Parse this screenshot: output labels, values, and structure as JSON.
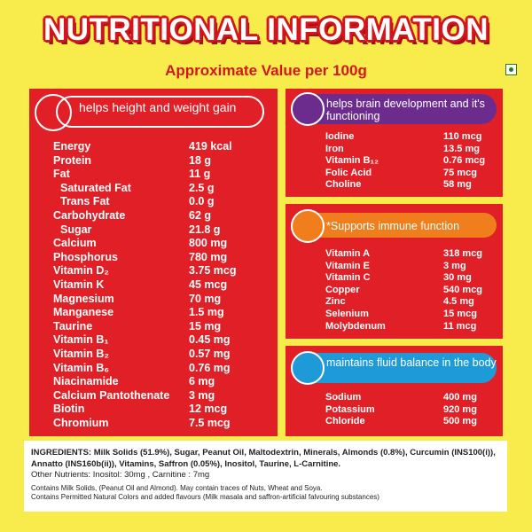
{
  "header": {
    "title": "NUTRITIONAL INFORMATION",
    "subtitle": "Approximate Value per 100g"
  },
  "panels": [
    {
      "header": "helps height and weight gain",
      "rows": [
        {
          "name": "Energy",
          "value": "419 kcal"
        },
        {
          "name": "Protein",
          "value": "18 g"
        },
        {
          "name": "Fat",
          "value": "11 g"
        },
        {
          "name": "Saturated Fat",
          "value": "2.5 g",
          "indented": true
        },
        {
          "name": "Trans Fat",
          "value": "0.0 g",
          "indented": true
        },
        {
          "name": "Carbohydrate",
          "value": "62 g"
        },
        {
          "name": "Sugar",
          "value": "21.8 g",
          "indented": true
        },
        {
          "name": "Calcium",
          "value": "800 mg"
        },
        {
          "name": "Phosphorus",
          "value": "780 mg"
        },
        {
          "name": "Vitamin D₂",
          "value": "3.75 mcg"
        },
        {
          "name": "Vitamin K",
          "value": "45 mcg"
        },
        {
          "name": "Magnesium",
          "value": "70 mg"
        },
        {
          "name": "Manganese",
          "value": "1.5 mg"
        },
        {
          "name": "Taurine",
          "value": "15 mg"
        },
        {
          "name": "Vitamin B₁",
          "value": "0.45 mg"
        },
        {
          "name": "Vitamin B₂",
          "value": "0.57 mg"
        },
        {
          "name": "Vitamin B₆",
          "value": "0.76 mg"
        },
        {
          "name": "Niacinamide",
          "value": "6 mg"
        },
        {
          "name": "Calcium Pantothenate",
          "value": "3 mg"
        },
        {
          "name": "Biotin",
          "value": "12 mcg"
        },
        {
          "name": "Chromium",
          "value": "7.5 mcg"
        }
      ]
    },
    {
      "header": "helps brain development and it's functioning",
      "rows": [
        {
          "name": "Iodine",
          "value": "110 mcg"
        },
        {
          "name": "Iron",
          "value": "13.5 mg"
        },
        {
          "name": "Vitamin B₁₂",
          "value": "0.76 mcg"
        },
        {
          "name": "Folic Acid",
          "value": "75 mcg"
        },
        {
          "name": "Choline",
          "value": "58 mg"
        }
      ]
    },
    {
      "header": "*Supports immune function",
      "rows": [
        {
          "name": "Vitamin A",
          "value": "318 mcg"
        },
        {
          "name": "Vitamin E",
          "value": "3 mg"
        },
        {
          "name": "Vitamin C",
          "value": "30 mg"
        },
        {
          "name": "Copper",
          "value": "540 mcg"
        },
        {
          "name": "Zinc",
          "value": "4.5 mg"
        },
        {
          "name": "Selenium",
          "value": "15 mcg"
        },
        {
          "name": "Molybdenum",
          "value": "11 mcg"
        }
      ]
    },
    {
      "header": "maintains fluid balance in the body",
      "rows": [
        {
          "name": "Sodium",
          "value": "400 mg"
        },
        {
          "name": "Potassium",
          "value": "920 mg"
        },
        {
          "name": "Chloride",
          "value": "500 mg"
        }
      ]
    }
  ],
  "ingredients": {
    "label": "INGREDIENTS:",
    "text": "Milk Solids (51.9%), Sugar, Peanut Oil, Maltodextrin, Minerals, Almonds (0.8%), Curcumin (INS100(i)), Annatto (INS160b(ii)), Vitamins, Saffron (0.05%), Inositol, Taurine, L-Carnitine.",
    "other": "Other Nutrients: Inositol: 30mg , Carnitine : 7mg",
    "notes": [
      "Contains Milk Solids, (Peanut Oil and Almond). May contain traces of Nuts, Wheat and Soya.",
      "Contains Permitted Natural Colors and added flavours (Milk masala and saffron-artificial falvouring substances)"
    ]
  }
}
